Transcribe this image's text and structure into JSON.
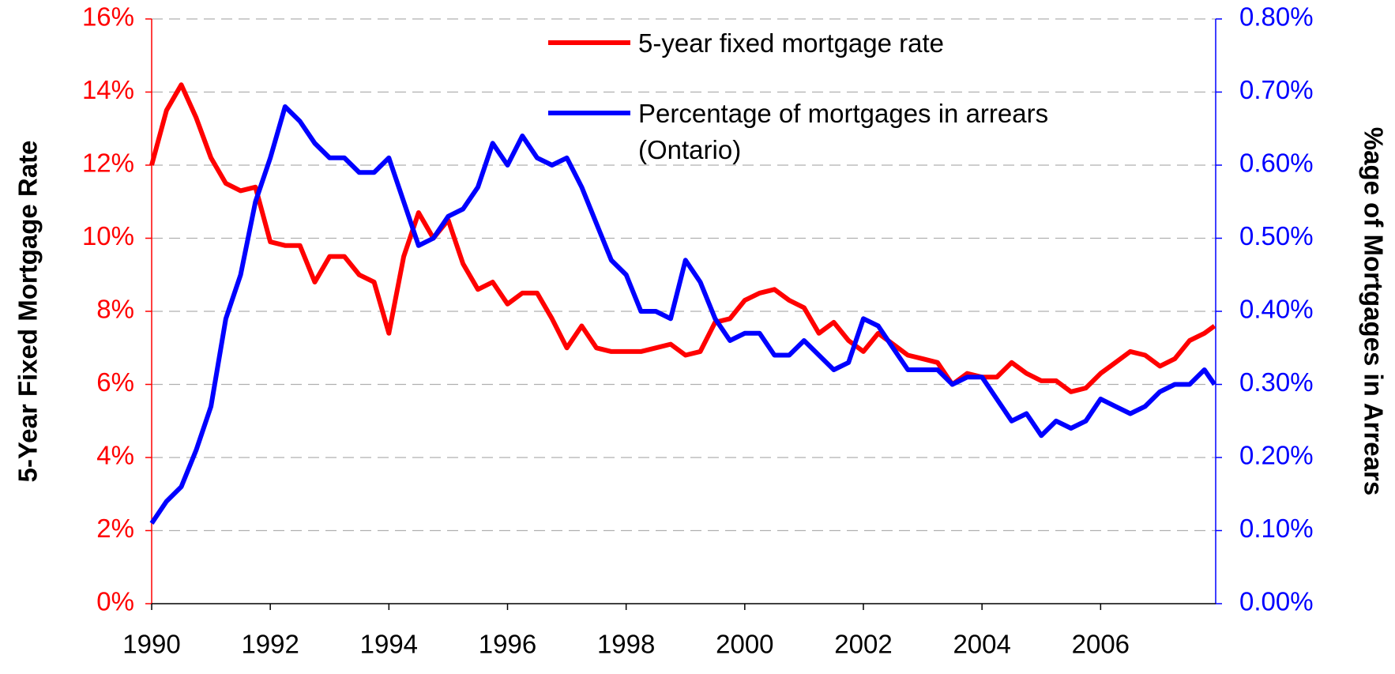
{
  "chart_data": {
    "type": "line",
    "x": [
      1990.0,
      1990.25,
      1990.5,
      1990.75,
      1991.0,
      1991.25,
      1991.5,
      1991.75,
      1992.0,
      1992.25,
      1992.5,
      1992.75,
      1993.0,
      1993.25,
      1993.5,
      1993.75,
      1994.0,
      1994.25,
      1994.5,
      1994.75,
      1995.0,
      1995.25,
      1995.5,
      1995.75,
      1996.0,
      1996.25,
      1996.5,
      1996.75,
      1997.0,
      1997.25,
      1997.5,
      1997.75,
      1998.0,
      1998.25,
      1998.5,
      1998.75,
      1999.0,
      1999.25,
      1999.5,
      1999.75,
      2000.0,
      2000.25,
      2000.5,
      2000.75,
      2001.0,
      2001.25,
      2001.5,
      2001.75,
      2002.0,
      2002.25,
      2002.5,
      2002.75,
      2003.0,
      2003.25,
      2003.5,
      2003.75,
      2004.0,
      2004.25,
      2004.5,
      2004.75,
      2005.0,
      2005.25,
      2005.5,
      2005.75,
      2006.0,
      2006.25,
      2006.5,
      2006.75,
      2007.0,
      2007.25,
      2007.5,
      2007.75,
      2007.92
    ],
    "series": [
      {
        "name": "5-year fixed mortgage rate",
        "color": "#ff0000",
        "values": [
          12.0,
          13.5,
          14.2,
          13.3,
          12.2,
          11.5,
          11.3,
          11.4,
          9.9,
          9.8,
          9.8,
          8.8,
          9.5,
          9.5,
          9.0,
          8.8,
          7.4,
          9.5,
          10.7,
          10.0,
          10.5,
          9.3,
          8.6,
          8.8,
          8.2,
          8.5,
          8.5,
          7.8,
          7.0,
          7.6,
          7.0,
          6.9,
          6.9,
          6.9,
          7.0,
          7.1,
          6.8,
          6.9,
          7.7,
          7.8,
          8.3,
          8.5,
          8.6,
          8.3,
          8.1,
          7.4,
          7.7,
          7.2,
          6.9,
          7.4,
          7.1,
          6.8,
          6.7,
          6.6,
          6.0,
          6.3,
          6.2,
          6.2,
          6.6,
          6.3,
          6.1,
          6.1,
          5.8,
          5.9,
          6.3,
          6.6,
          6.9,
          6.8,
          6.5,
          6.7,
          7.2,
          7.4,
          7.6
        ]
      },
      {
        "name": "Percentage of mortgages in arrears (Ontario)",
        "color": "#0000ff",
        "axis": "y2",
        "values": [
          0.11,
          0.14,
          0.16,
          0.21,
          0.27,
          0.39,
          0.45,
          0.55,
          0.61,
          0.68,
          0.66,
          0.63,
          0.61,
          0.61,
          0.59,
          0.59,
          0.61,
          0.55,
          0.49,
          0.5,
          0.53,
          0.54,
          0.57,
          0.63,
          0.6,
          0.64,
          0.61,
          0.6,
          0.61,
          0.57,
          0.52,
          0.47,
          0.45,
          0.4,
          0.4,
          0.39,
          0.47,
          0.44,
          0.39,
          0.36,
          0.37,
          0.37,
          0.34,
          0.34,
          0.36,
          0.34,
          0.32,
          0.33,
          0.39,
          0.38,
          0.35,
          0.32,
          0.32,
          0.32,
          0.3,
          0.31,
          0.31,
          0.28,
          0.25,
          0.26,
          0.23,
          0.25,
          0.24,
          0.25,
          0.28,
          0.27,
          0.26,
          0.27,
          0.29,
          0.3,
          0.3,
          0.32,
          0.3
        ]
      }
    ],
    "ylabel": "5-Year Fixed Mortgage Rate",
    "y2label": "%age of Mortgages in Arrears",
    "xlim": [
      1990,
      2007.94
    ],
    "xticks": [
      1990,
      1992,
      1994,
      1996,
      1998,
      2000,
      2002,
      2004,
      2006
    ],
    "ylim": [
      0,
      16
    ],
    "yticks": [
      {
        "value": 0,
        "label": "0%"
      },
      {
        "value": 2,
        "label": "2%"
      },
      {
        "value": 4,
        "label": "4%"
      },
      {
        "value": 6,
        "label": "6%"
      },
      {
        "value": 8,
        "label": "8%"
      },
      {
        "value": 10,
        "label": "10%"
      },
      {
        "value": 12,
        "label": "12%"
      },
      {
        "value": 14,
        "label": "14%"
      },
      {
        "value": 16,
        "label": "16%"
      }
    ],
    "y2lim": [
      0,
      0.8
    ],
    "y2ticks": [
      {
        "value": 0,
        "label": "0.00%"
      },
      {
        "value": 0.1,
        "label": "0.10%"
      },
      {
        "value": 0.2,
        "label": "0.20%"
      },
      {
        "value": 0.3,
        "label": "0.30%"
      },
      {
        "value": 0.4,
        "label": "0.40%"
      },
      {
        "value": 0.5,
        "label": "0.50%"
      },
      {
        "value": 0.6,
        "label": "0.60%"
      },
      {
        "value": 0.7,
        "label": "0.70%"
      },
      {
        "value": 0.8,
        "label": "0.80%"
      }
    ],
    "ycolor": "#ff0000",
    "y2color": "#0000ff",
    "grid": true,
    "legend": "top"
  }
}
